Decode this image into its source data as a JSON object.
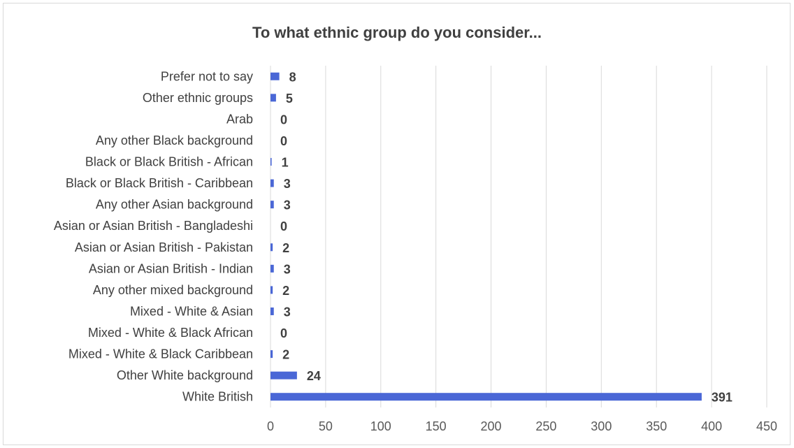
{
  "chart_data": {
    "type": "bar",
    "orientation": "horizontal",
    "title": "To what ethnic group do you consider...",
    "xlabel": "",
    "ylabel": "",
    "categories": [
      "White British",
      "Other White background",
      "Mixed - White & Black Caribbean",
      "Mixed - White & Black African",
      "Mixed - White & Asian",
      "Any other mixed background",
      "Asian or Asian British - Indian",
      "Asian or Asian British - Pakistan",
      "Asian or Asian British - Bangladeshi",
      "Any other Asian background",
      "Black or Black British - Caribbean",
      "Black or Black British - African",
      "Any other Black background",
      "Arab",
      "Other ethnic groups",
      "Prefer not to say"
    ],
    "values": [
      391,
      24,
      2,
      0,
      3,
      2,
      3,
      2,
      0,
      3,
      3,
      1,
      0,
      0,
      5,
      8
    ],
    "xlim": [
      0,
      450
    ],
    "xticks": [
      0,
      50,
      100,
      150,
      200,
      250,
      300,
      350,
      400,
      450
    ],
    "grid": true,
    "legend": "none",
    "colors": {
      "bar": "#4a67d6",
      "grid": "#d9d9d9",
      "text": "#404040"
    }
  }
}
